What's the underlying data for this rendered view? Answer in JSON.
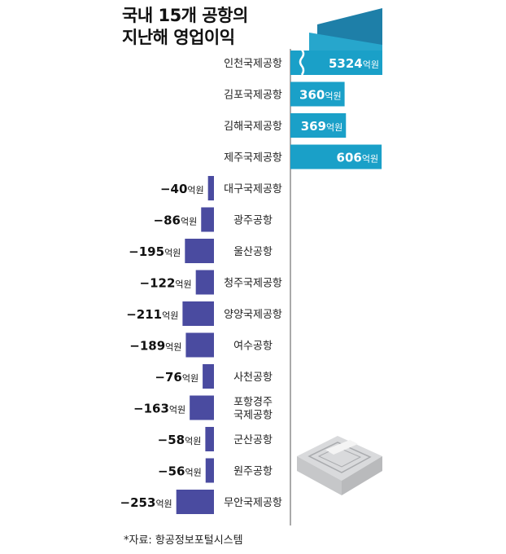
{
  "title_lines": [
    "국내 15개 공항의",
    "지난해 영업이익"
  ],
  "source": "*자료: 항공정보포털시스템",
  "colors": {
    "positive": "#1aa0c8",
    "negative": "#4a4ba0",
    "axis": "#555555"
  },
  "chart_data": {
    "type": "bar",
    "orientation": "horizontal",
    "title": "국내 15개 공항의 지난해 영업이익",
    "unit": "억원",
    "categories": [
      "인천국제공항",
      "김포국제공항",
      "김해국제공항",
      "제주국제공항",
      "대구국제공항",
      "광주공항",
      "울산공항",
      "청주국제공항",
      "양양국제공항",
      "여수공항",
      "사천공항",
      "포항경주 국제공항",
      "군산공항",
      "원주공항",
      "무안국제공항"
    ],
    "values": [
      5324,
      360,
      369,
      606,
      -40,
      -86,
      -195,
      -122,
      -211,
      -189,
      -76,
      -163,
      -58,
      -56,
      -253
    ],
    "axis_break": "인천국제공항 bar is truncated (axis break)",
    "series": [
      {
        "name": "영업이익",
        "values": [
          5324,
          360,
          369,
          606,
          -40,
          -86,
          -195,
          -122,
          -211,
          -189,
          -76,
          -163,
          -58,
          -56,
          -253
        ]
      }
    ]
  }
}
